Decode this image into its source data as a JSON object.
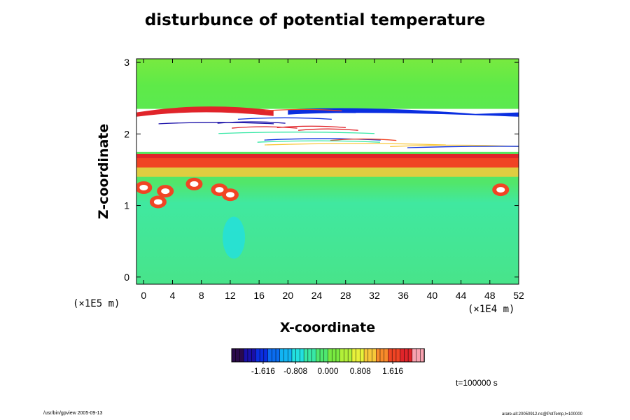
{
  "chart_data": {
    "type": "heatmap",
    "title": "disturbunce of potential temperature",
    "xlabel": "X-coordinate",
    "ylabel": "Z-coordinate",
    "x_scale_note": "(×1E4 m)",
    "y_scale_note": "(×1E5 m)",
    "xlim": [
      -1,
      52
    ],
    "ylim": [
      -0.1,
      3.05
    ],
    "x_ticks": [
      "0",
      "4",
      "8",
      "12",
      "16",
      "20",
      "24",
      "28",
      "32",
      "36",
      "40",
      "44",
      "48",
      "52"
    ],
    "x_tick_values": [
      0,
      4,
      8,
      12,
      16,
      20,
      24,
      28,
      32,
      36,
      40,
      44,
      48,
      52
    ],
    "y_ticks": [
      "0",
      "1",
      "2",
      "3"
    ],
    "y_tick_values": [
      0,
      1,
      2,
      3
    ],
    "colorbar": {
      "min": -2.4,
      "max": 2.4,
      "tick_labels": [
        "-1.616",
        "-0.808",
        "0.000",
        "0.808",
        "1.616"
      ],
      "tick_values": [
        -1.616,
        -0.808,
        0.0,
        0.808,
        1.616
      ],
      "colors": [
        "#2a0a4a",
        "#1a10a8",
        "#0a2ee0",
        "#0a6cf0",
        "#12b4f2",
        "#22e0e0",
        "#38e8a6",
        "#4ee870",
        "#78ea40",
        "#b2f038",
        "#e8f23a",
        "#f8c83a",
        "#f88a2a",
        "#f04424",
        "#e0242a",
        "#f8a2b0"
      ]
    },
    "field_description_values": {
      "background": 0.0,
      "upper_layer": 0.25,
      "undefined_band_z": [
        1.75,
        2.4
      ],
      "warm_layer_z": [
        1.45,
        1.7
      ],
      "cool_layer_z": [
        0.0,
        0.95
      ]
    },
    "time_label": "t=100000 s"
  },
  "footer": {
    "left": "/usr/bin/gpview 2005-09-13",
    "right": "arare-all:20050912.nc@PotTemp,t=100000"
  }
}
